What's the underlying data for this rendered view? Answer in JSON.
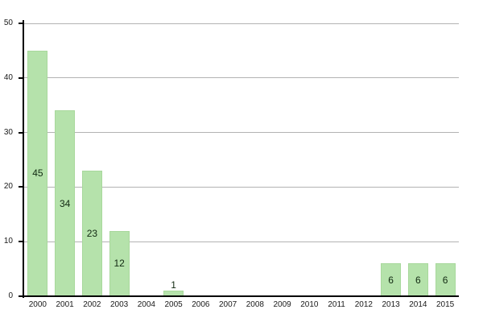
{
  "chart_data": {
    "type": "bar",
    "title": "",
    "xlabel": "",
    "ylabel": "",
    "categories": [
      "2000",
      "2001",
      "2002",
      "2003",
      "2004",
      "2005",
      "2006",
      "2007",
      "2008",
      "2009",
      "2010",
      "2011",
      "2012",
      "2013",
      "2014",
      "2015"
    ],
    "values": [
      45,
      34,
      23,
      12,
      0,
      1,
      0,
      0,
      0,
      0,
      0,
      0,
      0,
      6,
      6,
      6
    ],
    "value_labels_shown": [
      "45",
      "34",
      "23",
      "12",
      "1",
      "6",
      "6",
      "6"
    ],
    "ylim": [
      0,
      50
    ],
    "yticks": [
      0,
      10,
      20,
      30,
      40,
      50
    ],
    "grid": true,
    "legend_position": "none",
    "colors": {
      "bar_fill": "#b5e2ab",
      "bar_border": "#a8d89c",
      "grid_line": "#b3b3b3",
      "axis_line": "#000000",
      "tick_label": "#1a1a1a",
      "value_label": "#112911",
      "background": "#ffffff"
    }
  }
}
